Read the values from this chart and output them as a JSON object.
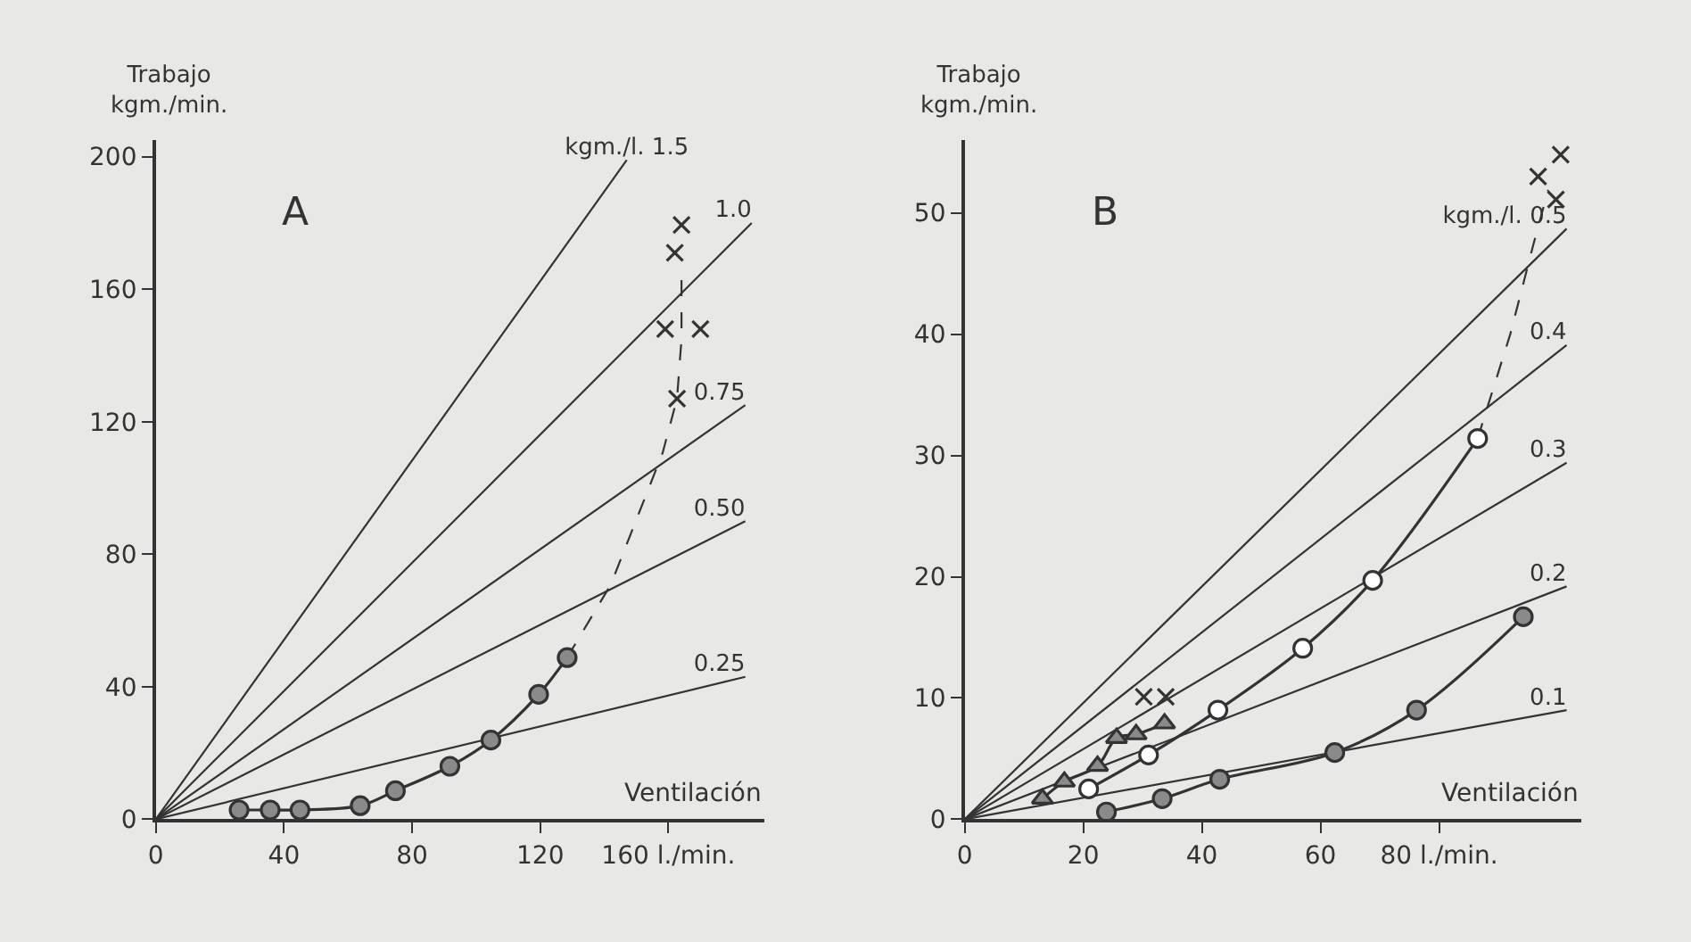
{
  "chart_data": [
    {
      "type": "line",
      "title": "A",
      "xlabel": "Ventilación",
      "ylabel": "Trabajo\nkgm./min.",
      "xlim": [
        0,
        190
      ],
      "ylim": [
        0,
        205
      ],
      "xticks": [
        0,
        40,
        80,
        120,
        {
          "value": 160,
          "label": "160 l./min."
        }
      ],
      "yticks": [
        0,
        40,
        80,
        120,
        160,
        200
      ],
      "grid": false,
      "series": [
        {
          "name": "kgm./l. 1.5",
          "color": "#333333",
          "x": [
            0,
            147
          ],
          "values": [
            0,
            199
          ],
          "marker": "none",
          "line_style": "solid"
        },
        {
          "name": "1.0",
          "color": "#333333",
          "x": [
            0,
            186
          ],
          "values": [
            0,
            180
          ],
          "marker": "none",
          "line_style": "solid"
        },
        {
          "name": "0.75",
          "color": "#333333",
          "x": [
            0,
            184
          ],
          "values": [
            0,
            125
          ],
          "marker": "none",
          "line_style": "solid"
        },
        {
          "name": "0.50",
          "color": "#333333",
          "x": [
            0,
            184
          ],
          "values": [
            0,
            90
          ],
          "marker": "none",
          "line_style": "solid"
        },
        {
          "name": "0.25",
          "color": "#333333",
          "x": [
            0,
            184
          ],
          "values": [
            0,
            43
          ],
          "marker": "none",
          "line_style": "solid"
        },
        {
          "type": "line",
          "color": "#333333",
          "x": [
            128.4,
            142,
            158.2,
            162.7,
            164.1,
            164.1
          ],
          "values": [
            48.8,
            70.8,
            110.6,
            127,
            145,
            164
          ],
          "marker": "none",
          "line_style": "dashed"
        },
        {
          "type": "line",
          "color": "#8a8a8a",
          "x": [
            26,
            35.7,
            45,
            63.8,
            74.8,
            91.8,
            104.6,
            119.5,
            128.4
          ],
          "values": [
            2.8,
            2.8,
            2.8,
            4.1,
            8.6,
            16,
            23.9,
            37.7,
            48.8
          ],
          "marker": "circle",
          "line_style": "solid"
        },
        {
          "type": "scatter",
          "color": "#333333",
          "x": [
            164.1,
            162,
            159,
            170,
            162.7
          ],
          "values": [
            179.4,
            171,
            148,
            148,
            127
          ],
          "marker": "cross"
        }
      ]
    },
    {
      "type": "line",
      "title": "B",
      "xlabel": "Ventilación",
      "ylabel": "Trabajo\nkgm./min.",
      "xlim": [
        0,
        104
      ],
      "ylim": [
        0,
        56
      ],
      "xticks": [
        0,
        20,
        40,
        60,
        {
          "value": 80,
          "label": "80 l./min."
        }
      ],
      "yticks": [
        0,
        10,
        20,
        30,
        40,
        50
      ],
      "grid": false,
      "series": [
        {
          "name": "kgm./l. 0.5",
          "color": "#333333",
          "x": [
            0,
            101.5
          ],
          "values": [
            0,
            48.7
          ],
          "marker": "none",
          "line_style": "solid"
        },
        {
          "name": "0.4",
          "color": "#333333",
          "x": [
            0,
            101.5
          ],
          "values": [
            0,
            39.1
          ],
          "marker": "none",
          "line_style": "solid"
        },
        {
          "name": "0.3",
          "color": "#333333",
          "x": [
            0,
            101.5
          ],
          "values": [
            0,
            29.4
          ],
          "marker": "none",
          "line_style": "solid"
        },
        {
          "name": "0.2",
          "color": "#333333",
          "x": [
            0,
            101.5
          ],
          "values": [
            0,
            19.2
          ],
          "marker": "none",
          "line_style": "solid"
        },
        {
          "name": "0.1",
          "color": "#333333",
          "x": [
            0,
            101.5
          ],
          "values": [
            0,
            9.0
          ],
          "marker": "none",
          "line_style": "solid"
        },
        {
          "type": "line",
          "color": "#333333",
          "x": [
            86.5,
            92,
            95.9,
            98.4
          ],
          "values": [
            31.4,
            40,
            47.4,
            51.9
          ],
          "marker": "none",
          "line_style": "dashed"
        },
        {
          "type": "line",
          "color": "#ffffff",
          "x": [
            20.9,
            31,
            42.7,
            57,
            68.8,
            86.5
          ],
          "values": [
            2.5,
            5.3,
            9.0,
            14.1,
            19.7,
            31.4
          ],
          "marker": "circle",
          "line_style": "solid"
        },
        {
          "type": "line",
          "color": "#8a8a8a",
          "x": [
            23.9,
            33.3,
            43,
            62.4,
            76.2,
            94.2
          ],
          "values": [
            0.6,
            1.7,
            3.3,
            5.5,
            9.0,
            16.7
          ],
          "marker": "circle",
          "line_style": "solid"
        },
        {
          "type": "line",
          "color": "#8a8a8a",
          "x": [
            13.1,
            16.8,
            22.4,
            25.6,
            28.9,
            33.7
          ],
          "values": [
            1.7,
            3.1,
            4.4,
            6.7,
            7.0,
            7.9
          ],
          "marker": "triangle",
          "line_style": "solid"
        },
        {
          "type": "scatter",
          "color": "#333333",
          "x": [
            30.2,
            33.9,
            96.7,
            100.5,
            99.7
          ],
          "values": [
            10.1,
            10.1,
            53.0,
            54.8,
            51.1
          ],
          "marker": "cross"
        }
      ]
    }
  ]
}
